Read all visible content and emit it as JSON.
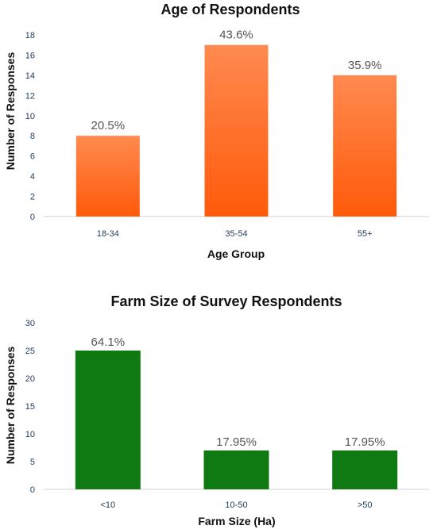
{
  "chart_data": [
    {
      "type": "bar",
      "title": "Age of Respondents",
      "xlabel": "Age Group",
      "ylabel": "Number of Responses",
      "categories": [
        "18-34",
        "35-54",
        "55+"
      ],
      "values": [
        8,
        17,
        14
      ],
      "data_labels": [
        "20.5%",
        "43.6%",
        "35.9%"
      ],
      "ylim": [
        0,
        18
      ],
      "yticks": [
        0,
        2,
        4,
        6,
        8,
        10,
        12,
        14,
        16,
        18
      ],
      "bar_color_top": "#FF8A50",
      "bar_color_bottom": "#FF5A0A",
      "grid": false
    },
    {
      "type": "bar",
      "title": "Farm Size of Survey Respondents",
      "xlabel": "Farm Size (Ha)",
      "ylabel": "Number of Responses",
      "categories": [
        "<10",
        "10-50",
        ">50"
      ],
      "values": [
        25,
        7,
        7
      ],
      "data_labels": [
        "64.1%",
        "17.95%",
        "17.95%"
      ],
      "ylim": [
        0,
        30
      ],
      "yticks": [
        0,
        5,
        10,
        15,
        20,
        25,
        30
      ],
      "bar_color_top": "#0F7A12",
      "bar_color_bottom": "#0F7A12",
      "grid": false
    }
  ]
}
